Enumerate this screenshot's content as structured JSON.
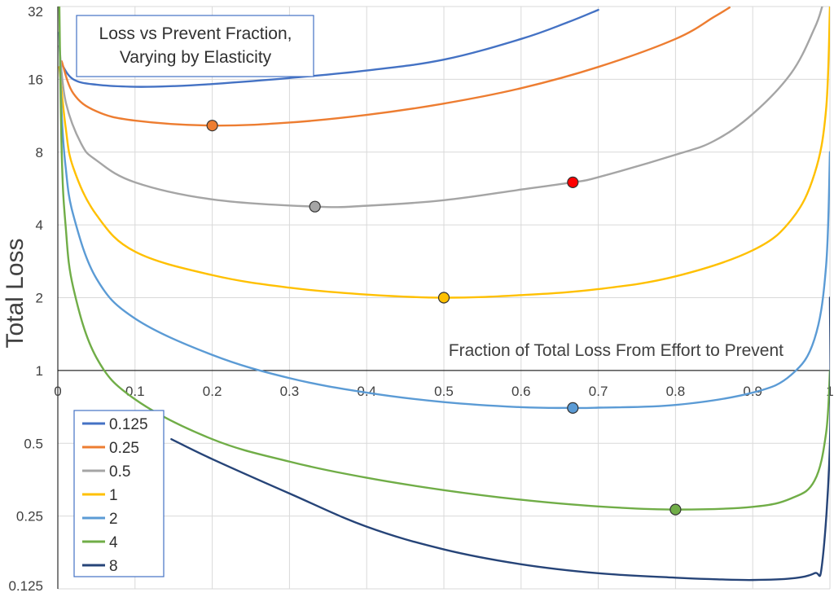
{
  "chart_data": {
    "type": "line",
    "title": "Loss vs Prevent Fraction,\nVarying by Elasticity",
    "xlabel": "Fraction of Total Loss From Effort to Prevent",
    "ylabel": "Total Loss",
    "xlim": [
      0,
      1
    ],
    "ylim": [
      0.125,
      32
    ],
    "yscale": "log2",
    "grid": true,
    "legend_position": "bottom-left",
    "x_ticks": [
      "0",
      "0.1",
      "0.2",
      "0.3",
      "0.4",
      "0.5",
      "0.6",
      "0.7",
      "0.8",
      "0.9",
      "1"
    ],
    "y_ticks": [
      {
        "value": 0.125,
        "label": "0.125"
      },
      {
        "value": 0.25,
        "label": "0.25"
      },
      {
        "value": 0.5,
        "label": "0.5"
      },
      {
        "value": 1,
        "label": "1"
      },
      {
        "value": 2,
        "label": "2"
      },
      {
        "value": 4,
        "label": "4"
      },
      {
        "value": 8,
        "label": "8"
      },
      {
        "value": 16,
        "label": "16"
      },
      {
        "value": 32,
        "label": "32"
      }
    ],
    "series": [
      {
        "name": "0.125",
        "color": "#4472C4",
        "x": [
          0.005,
          0.02,
          0.05,
          0.1,
          0.15,
          0.2,
          0.3,
          0.4,
          0.5,
          0.6,
          0.66,
          0.7
        ],
        "y": [
          18.5,
          16.0,
          15.2,
          14.9,
          15.0,
          15.3,
          16.2,
          17.4,
          19.3,
          23.5,
          27.5,
          31.0
        ]
      },
      {
        "name": "0.25",
        "color": "#ED7D31",
        "x": [
          0.005,
          0.02,
          0.05,
          0.1,
          0.2,
          0.3,
          0.4,
          0.5,
          0.6,
          0.7,
          0.8,
          0.85,
          0.87
        ],
        "y": [
          19.0,
          14.0,
          11.8,
          10.8,
          10.3,
          10.6,
          11.4,
          12.7,
          14.7,
          18.0,
          23.5,
          29.0,
          31.7
        ]
      },
      {
        "name": "0.5",
        "color": "#A5A5A5",
        "x": [
          0.002,
          0.01,
          0.03,
          0.05,
          0.1,
          0.2,
          0.333,
          0.4,
          0.5,
          0.6,
          0.667,
          0.7,
          0.8,
          0.85,
          0.9,
          0.95,
          0.98,
          0.99
        ],
        "y": [
          22.0,
          13.0,
          8.7,
          7.4,
          6.0,
          5.1,
          4.76,
          4.8,
          5.06,
          5.6,
          6.0,
          6.3,
          7.8,
          8.9,
          11.5,
          17.0,
          26.0,
          32.0
        ]
      },
      {
        "name": "1",
        "color": "#FFC000",
        "x": [
          0.002,
          0.01,
          0.02,
          0.05,
          0.1,
          0.2,
          0.3,
          0.4,
          0.5,
          0.6,
          0.7,
          0.8,
          0.9,
          0.95,
          0.98,
          0.995,
          1.0
        ],
        "y": [
          18.0,
          10.2,
          6.9,
          4.4,
          3.1,
          2.48,
          2.2,
          2.06,
          2.0,
          2.05,
          2.17,
          2.45,
          3.14,
          4.2,
          6.5,
          12.0,
          32.0
        ]
      },
      {
        "name": "2",
        "color": "#5B9BD5",
        "x": [
          0.002,
          0.005,
          0.01,
          0.02,
          0.05,
          0.1,
          0.2,
          0.3,
          0.4,
          0.5,
          0.6,
          0.667,
          0.7,
          0.8,
          0.9,
          0.95,
          0.98,
          0.995,
          1.0
        ],
        "y": [
          25.0,
          11.5,
          7.0,
          4.4,
          2.4,
          1.64,
          1.16,
          0.93,
          0.81,
          0.74,
          0.705,
          0.7,
          0.702,
          0.72,
          0.81,
          0.96,
          1.35,
          2.7,
          8.0
        ]
      },
      {
        "name": "4",
        "color": "#70AD47",
        "x": [
          0.002,
          0.005,
          0.01,
          0.02,
          0.05,
          0.1,
          0.2,
          0.3,
          0.4,
          0.5,
          0.6,
          0.7,
          0.8,
          0.9,
          0.95,
          0.98,
          0.995,
          1.0
        ],
        "y": [
          32.0,
          8.0,
          4.0,
          2.2,
          1.13,
          0.76,
          0.52,
          0.42,
          0.36,
          0.32,
          0.292,
          0.274,
          0.266,
          0.273,
          0.296,
          0.35,
          0.55,
          1.0
        ]
      },
      {
        "name": "8",
        "color": "#264478",
        "x": [
          0.147,
          0.2,
          0.3,
          0.4,
          0.5,
          0.6,
          0.7,
          0.8,
          0.85,
          0.9,
          0.95,
          0.98,
          0.99,
          1.0,
          1.0
        ],
        "y": [
          0.52,
          0.43,
          0.31,
          0.226,
          0.182,
          0.158,
          0.145,
          0.139,
          0.137,
          0.136,
          0.138,
          0.145,
          0.16,
          0.5,
          2.0
        ]
      }
    ],
    "markers": [
      {
        "series": "0.25",
        "x": 0.2,
        "y": 10.3,
        "color": "#ED7D31"
      },
      {
        "series": "0.5",
        "x": 0.333,
        "y": 4.76,
        "color": "#A5A5A5"
      },
      {
        "series": "0.5",
        "x": 0.667,
        "y": 6.0,
        "color": "#FF0000"
      },
      {
        "series": "1",
        "x": 0.5,
        "y": 2.0,
        "color": "#FFC000"
      },
      {
        "series": "2",
        "x": 0.667,
        "y": 0.7,
        "color": "#5B9BD5"
      },
      {
        "series": "4",
        "x": 0.8,
        "y": 0.266,
        "color": "#70AD47"
      }
    ]
  }
}
